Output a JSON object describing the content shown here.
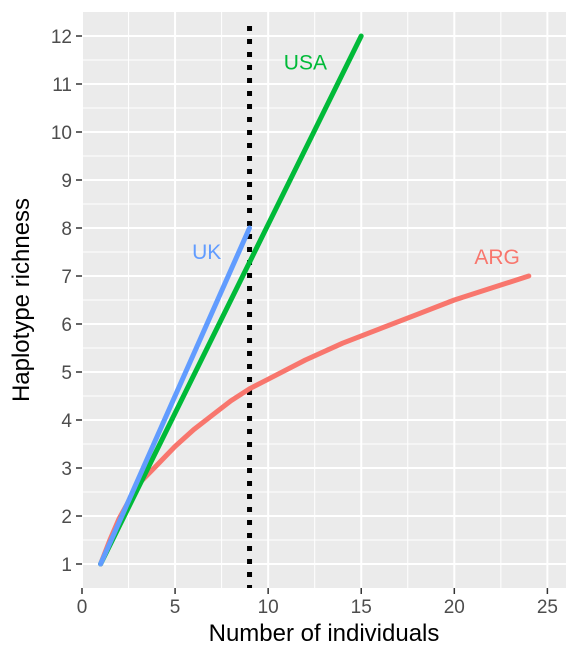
{
  "chart_data": {
    "type": "line",
    "title": "",
    "xlabel": "Number of individuals",
    "ylabel": "Haplotype richness",
    "xlim": [
      0,
      26
    ],
    "ylim": [
      0.5,
      12.5
    ],
    "x_ticks": [
      0,
      5,
      10,
      15,
      20,
      25
    ],
    "y_ticks": [
      1,
      2,
      3,
      4,
      5,
      6,
      7,
      8,
      9,
      10,
      11,
      12
    ],
    "grid": true,
    "legend": "none",
    "reference_line": {
      "x": 9,
      "style": "dotted",
      "color": "#000000"
    },
    "series": [
      {
        "name": "ARG",
        "color": "#F8766D",
        "label_anchor": [
          22.3,
          7.4
        ],
        "x": [
          1,
          1.5,
          2,
          3,
          4,
          5,
          6,
          7,
          8,
          9,
          10,
          12,
          14,
          16,
          18,
          20,
          22,
          24
        ],
        "y": [
          1.0,
          1.5,
          1.95,
          2.65,
          3.05,
          3.45,
          3.8,
          4.1,
          4.4,
          4.65,
          4.85,
          5.25,
          5.6,
          5.9,
          6.2,
          6.5,
          6.75,
          7.0
        ]
      },
      {
        "name": "USA",
        "color": "#00BA38",
        "label_anchor": [
          12.0,
          11.45
        ],
        "x": [
          1,
          15
        ],
        "y": [
          1,
          12
        ]
      },
      {
        "name": "UK",
        "color": "#619CFF",
        "label_anchor": [
          6.7,
          7.5
        ],
        "x": [
          1,
          9
        ],
        "y": [
          1,
          8
        ]
      }
    ]
  }
}
